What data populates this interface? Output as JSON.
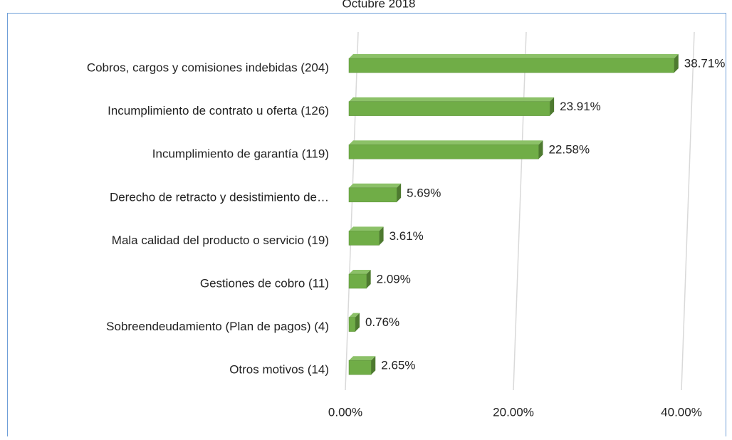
{
  "chart_data": {
    "type": "bar",
    "orientation": "horizontal",
    "title": "Octubre 2018",
    "categories": [
      "Cobros, cargos y comisiones indebidas (204)",
      "Incumplimiento de contrato u oferta (126)",
      "Incumplimiento de garantía (119)",
      "Derecho de retracto y desistimiento de…",
      "Mala calidad del producto o servicio (19)",
      "Gestiones de cobro (11)",
      "Sobreendeudamiento (Plan de pagos) (4)",
      "Otros motivos (14)"
    ],
    "values": [
      38.71,
      23.91,
      22.58,
      5.69,
      3.61,
      2.09,
      0.76,
      2.65
    ],
    "value_labels": [
      "38.71%",
      "23.91%",
      "22.58%",
      "5.69%",
      "3.61%",
      "2.09%",
      "0.76%",
      "2.65%"
    ],
    "color": "#70ad47",
    "xlim": [
      0,
      40
    ],
    "xticks": [
      {
        "value": 0,
        "label": "0.00%"
      },
      {
        "value": 20,
        "label": "20.00%"
      },
      {
        "value": 40,
        "label": "40.00%"
      }
    ],
    "grid": true
  }
}
